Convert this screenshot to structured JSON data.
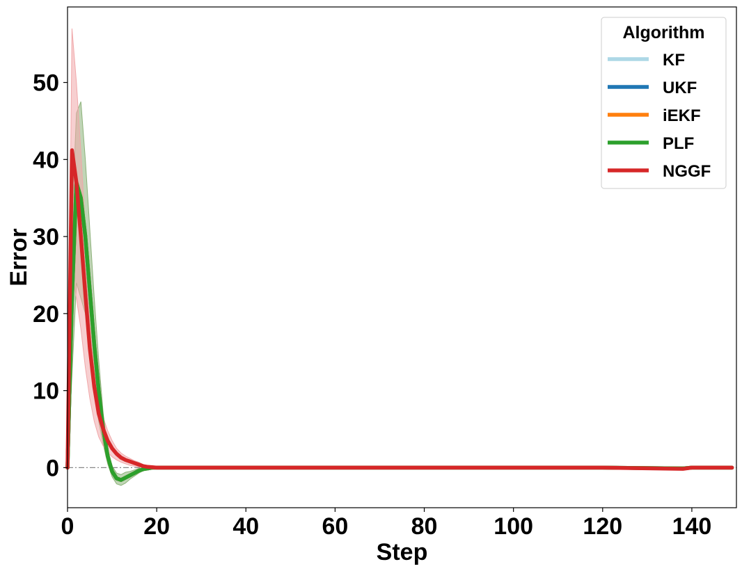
{
  "chart_data": {
    "type": "line",
    "title": "",
    "xlabel": "Step",
    "ylabel": "Error",
    "xlim": [
      0,
      150
    ],
    "ylim": [
      -5.2,
      59.8
    ],
    "xticks": [
      0,
      20,
      40,
      60,
      80,
      100,
      120,
      140
    ],
    "yticks": [
      0,
      10,
      20,
      30,
      40,
      50
    ],
    "grid": false,
    "reference_line": {
      "y": 0,
      "style": "dash-dot",
      "color": "#888888"
    },
    "legend": {
      "title": "Algorithm",
      "placement": "top-right"
    },
    "series": [
      {
        "name": "KF",
        "color": "#add8e6",
        "x": [
          0,
          1,
          2,
          3,
          4,
          5,
          6,
          7,
          8,
          9,
          10,
          11,
          12,
          13,
          14,
          15,
          16,
          17,
          18,
          19,
          20,
          22,
          25,
          30,
          40,
          60,
          80,
          100,
          120,
          138,
          140,
          149
        ],
        "y": [
          0,
          22,
          37,
          35,
          30,
          23,
          16,
          10,
          5,
          1.5,
          -0.5,
          -1.4,
          -1.6,
          -1.3,
          -1.0,
          -0.7,
          -0.4,
          -0.2,
          -0.1,
          0,
          0,
          0,
          0,
          0,
          0,
          0,
          0,
          0,
          0,
          -0.1,
          0,
          0
        ]
      },
      {
        "name": "UKF",
        "color": "#1f77b4",
        "x": [
          0,
          1,
          2,
          3,
          4,
          5,
          6,
          7,
          8,
          9,
          10,
          11,
          12,
          13,
          14,
          15,
          16,
          17,
          18,
          19,
          20,
          22,
          25,
          30,
          40,
          60,
          80,
          100,
          120,
          138,
          140,
          149
        ],
        "y": [
          0,
          22,
          37,
          35,
          30,
          23,
          16,
          10,
          5,
          1.5,
          -0.5,
          -1.4,
          -1.6,
          -1.3,
          -1.0,
          -0.7,
          -0.4,
          -0.2,
          -0.1,
          0,
          0,
          0,
          0,
          0,
          0,
          0,
          0,
          0,
          0,
          -0.1,
          0,
          0
        ]
      },
      {
        "name": "iEKF",
        "color": "#ff7f0e",
        "x": [
          0,
          1,
          2,
          3,
          4,
          5,
          6,
          7,
          8,
          9,
          10,
          11,
          12,
          13,
          14,
          15,
          16,
          17,
          18,
          19,
          20,
          22,
          25,
          30,
          40,
          60,
          80,
          100,
          120,
          138,
          140,
          149
        ],
        "y": [
          0,
          22,
          37,
          35,
          30,
          23,
          16,
          10,
          5,
          1.5,
          -0.5,
          -1.4,
          -1.6,
          -1.3,
          -1.0,
          -0.7,
          -0.4,
          -0.2,
          -0.1,
          0,
          0,
          0,
          0,
          0,
          0,
          0,
          0,
          0,
          0,
          -0.1,
          0,
          0
        ]
      },
      {
        "name": "PLF",
        "color": "#2ca02c",
        "band_color": "#8db27a",
        "x": [
          0,
          1,
          2,
          3,
          4,
          5,
          6,
          7,
          8,
          9,
          10,
          11,
          12,
          13,
          14,
          15,
          16,
          17,
          18,
          19,
          20,
          22,
          25,
          30,
          40,
          60,
          80,
          100,
          120,
          138,
          140,
          149
        ],
        "y": [
          0,
          22,
          37,
          35,
          30,
          23,
          16,
          10,
          5,
          1.5,
          -0.5,
          -1.4,
          -1.6,
          -1.3,
          -1.0,
          -0.7,
          -0.4,
          -0.2,
          -0.1,
          0,
          0,
          0,
          0,
          0,
          0,
          0,
          0,
          0,
          0,
          -0.1,
          0,
          0
        ],
        "band_lower": [
          0,
          12,
          24,
          22,
          20,
          15,
          10,
          6,
          3,
          0.5,
          -1.2,
          -2.1,
          -2.3,
          -2.0,
          -1.5,
          -1.1,
          -0.7,
          -0.4,
          -0.2,
          -0.1,
          0,
          0,
          0,
          0,
          0,
          0,
          0,
          0,
          0,
          -0.1,
          0,
          0
        ],
        "band_upper": [
          0,
          32,
          46,
          47.5,
          40,
          31,
          22,
          14,
          7,
          2.5,
          0.2,
          -0.7,
          -0.9,
          -0.6,
          -0.5,
          -0.3,
          -0.1,
          0,
          0,
          0,
          0,
          0,
          0,
          0,
          0,
          0,
          0,
          0,
          0,
          -0.1,
          0,
          0
        ]
      },
      {
        "name": "NGGF",
        "color": "#d62728",
        "band_color": "#f0a8aa",
        "x": [
          0,
          1,
          2,
          3,
          4,
          5,
          6,
          7,
          8,
          9,
          10,
          11,
          12,
          13,
          14,
          15,
          16,
          17,
          18,
          19,
          20,
          22,
          25,
          30,
          40,
          60,
          80,
          100,
          120,
          138,
          140,
          149
        ],
        "y": [
          0,
          41.2,
          37,
          30,
          22.5,
          15.5,
          10.5,
          7,
          5,
          3.5,
          2.5,
          1.8,
          1.3,
          1.0,
          0.8,
          0.6,
          0.4,
          0.2,
          0.1,
          0.05,
          0,
          0,
          0,
          0,
          0,
          0,
          0,
          0,
          0,
          -0.15,
          0,
          0
        ],
        "band_lower": [
          0,
          25,
          22,
          18,
          13,
          9,
          6,
          4,
          2.8,
          2.0,
          1.4,
          1.0,
          0.7,
          0.5,
          0.3,
          0.2,
          0.1,
          0,
          0,
          0,
          0,
          0,
          0,
          0,
          0,
          0,
          0,
          0,
          0,
          -0.2,
          0,
          0
        ],
        "band_upper": [
          0,
          57,
          50,
          41,
          31,
          21,
          14,
          9.5,
          6.5,
          4.8,
          3.5,
          2.5,
          1.9,
          1.5,
          1.2,
          0.9,
          0.7,
          0.4,
          0.2,
          0.1,
          0,
          0,
          0,
          0,
          0,
          0,
          0,
          0,
          0,
          -0.1,
          0,
          0
        ]
      }
    ]
  }
}
